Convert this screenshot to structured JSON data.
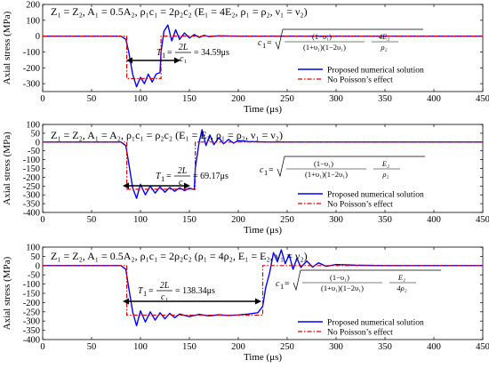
{
  "chart_data": [
    {
      "type": "line",
      "condition": "Z₁ = Z₂, A₁ = 0.5A₂, ρ₁c₁ = 2ρ₂c₂ (E₁ = 4E₂, ρ₁ = ρ₂, ν₁ = ν₂)",
      "xlabel": "Time (μs)",
      "ylabel": "Axial stress (MPa)",
      "xlim": [
        0,
        450
      ],
      "ylim": [
        -350,
        200
      ],
      "xticks": [
        "0",
        "50",
        "100",
        "150",
        "200",
        "250",
        "300",
        "350",
        "400",
        "450"
      ],
      "yticks": [
        "200",
        "100",
        "0",
        "-100",
        "-200",
        "-300"
      ],
      "grid": false,
      "legend_position": "right",
      "period_annotation": "T₁ = 2L/c₁ = 34.59μs",
      "wave_speed_formula": "c₁ = √[(1−ν₁)/((1+ν₁)(1−2ν₁)) · 4E₂/ρ₂]",
      "series": [
        {
          "name": "Proposed numerical solution",
          "color": "#0000ff",
          "style": "solid",
          "x": [
            0,
            80,
            85,
            88,
            92,
            96,
            100,
            104,
            108,
            112,
            116,
            120,
            121,
            124,
            128,
            132,
            136,
            140,
            145,
            150,
            155,
            160,
            165,
            170,
            180,
            200,
            250,
            300,
            350,
            400,
            450
          ],
          "y": [
            0,
            0,
            -20,
            -100,
            -240,
            -320,
            -260,
            -300,
            -240,
            -290,
            -240,
            -230,
            -100,
            30,
            70,
            -30,
            40,
            -20,
            20,
            -12,
            10,
            -8,
            5,
            -3,
            2,
            0,
            0,
            0,
            0,
            0,
            0
          ]
        },
        {
          "name": "No Poisson’s effect",
          "color": "#dd0000",
          "style": "dashdot",
          "x": [
            0,
            86,
            86,
            121,
            121,
            450
          ],
          "y": [
            0,
            0,
            -268,
            -268,
            0,
            0
          ]
        }
      ]
    },
    {
      "type": "line",
      "condition": "Z₁ = Z₂, A₁ = A₂, ρ₁c₁ = ρ₂c₂ (E₁ = E₂, ρ₁ = ρ₂, ν₁ = ν₂)",
      "xlabel": "Time (μs)",
      "ylabel": "Axial stress (MPa)",
      "xlim": [
        0,
        450
      ],
      "ylim": [
        -400,
        100
      ],
      "xticks": [
        "0",
        "50",
        "100",
        "150",
        "200",
        "250",
        "300",
        "350",
        "400",
        "450"
      ],
      "yticks": [
        "100",
        "50",
        "0",
        "-50",
        "-100",
        "-150",
        "-200",
        "-250",
        "-300",
        "-350",
        "-400"
      ],
      "grid": false,
      "legend_position": "right",
      "period_annotation": "T₁ = 2L/c₁ = 69.17μs",
      "wave_speed_formula": "c₁ = √[(1−ν₁)/((1+ν₁)(1−2ν₁)) · E₂/ρ₂]",
      "series": [
        {
          "name": "Proposed numerical solution",
          "color": "#0000ff",
          "style": "solid",
          "x": [
            0,
            80,
            85,
            88,
            92,
            96,
            100,
            105,
            110,
            115,
            120,
            125,
            130,
            135,
            140,
            145,
            150,
            155,
            156,
            160,
            163,
            167,
            171,
            175,
            180,
            185,
            190,
            195,
            200,
            210,
            230,
            250,
            300,
            350,
            400,
            450
          ],
          "y": [
            0,
            0,
            -20,
            -120,
            -260,
            -320,
            -240,
            -300,
            -250,
            -290,
            -255,
            -285,
            -258,
            -280,
            -260,
            -276,
            -262,
            -270,
            -150,
            0,
            70,
            -20,
            40,
            -15,
            25,
            -10,
            15,
            -6,
            8,
            3,
            0,
            0,
            0,
            0,
            0,
            0
          ]
        },
        {
          "name": "No Poisson’s effect",
          "color": "#dd0000",
          "style": "dashdot",
          "x": [
            0,
            86,
            86,
            156,
            156,
            450
          ],
          "y": [
            0,
            0,
            -268,
            -268,
            0,
            0
          ]
        }
      ]
    },
    {
      "type": "line",
      "condition": "Z₁ = Z₂, A₁ = 0.5A₂, ρ₁c₁ = 2ρ₂c₂ (ρ₁ = 4ρ₂, E₁ = E₂, ν₁ = ν₂)",
      "xlabel": "Time (μs)",
      "ylabel": "Axial stress (MPa)",
      "xlim": [
        0,
        450
      ],
      "ylim": [
        -400,
        100
      ],
      "xticks": [
        "0",
        "50",
        "100",
        "150",
        "200",
        "250",
        "300",
        "350",
        "400",
        "450"
      ],
      "yticks": [
        "100",
        "50",
        "0",
        "-50",
        "-100",
        "-150",
        "-200",
        "-250",
        "-300",
        "-350",
        "-400"
      ],
      "grid": false,
      "legend_position": "right",
      "period_annotation": "T₁ = 2L/c₁ = 138.34μs",
      "wave_speed_formula": "c₁ = √[(1−ν₁)/((1+ν₁)(1−2ν₁)) · E₂/4ρ₂]",
      "series": [
        {
          "name": "Proposed numerical solution",
          "color": "#0000ff",
          "style": "solid",
          "x": [
            0,
            80,
            85,
            88,
            92,
            96,
            100,
            105,
            110,
            115,
            120,
            125,
            130,
            135,
            140,
            150,
            160,
            170,
            180,
            190,
            200,
            210,
            220,
            225,
            228,
            232,
            236,
            240,
            244,
            248,
            252,
            256,
            260,
            264,
            270,
            276,
            282,
            290,
            300,
            320,
            350,
            400,
            450
          ],
          "y": [
            0,
            0,
            -20,
            -120,
            -250,
            -325,
            -245,
            -305,
            -250,
            -295,
            -255,
            -288,
            -258,
            -282,
            -262,
            -276,
            -264,
            -272,
            -266,
            -270,
            -267,
            -262,
            -255,
            -220,
            -120,
            -40,
            70,
            20,
            85,
            10,
            60,
            -20,
            40,
            -10,
            25,
            -8,
            15,
            -4,
            6,
            2,
            0,
            0,
            0
          ]
        },
        {
          "name": "No Poisson’s effect",
          "color": "#dd0000",
          "style": "dashdot",
          "x": [
            0,
            86,
            86,
            225,
            225,
            450
          ],
          "y": [
            0,
            0,
            -268,
            -268,
            0,
            0
          ]
        }
      ]
    }
  ]
}
